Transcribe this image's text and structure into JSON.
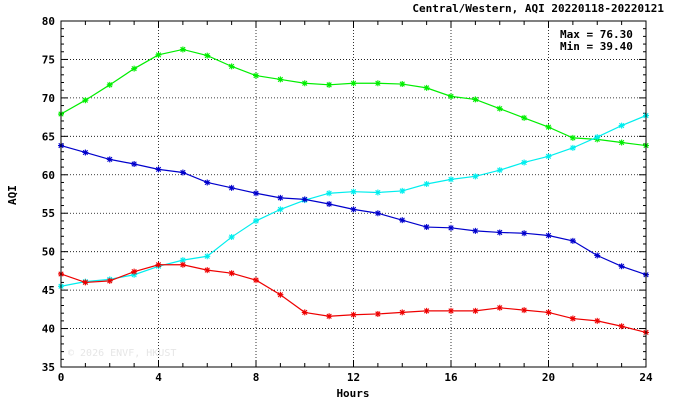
{
  "chart_data": {
    "type": "line",
    "title": "Central/Western, AQI 20220118-20220121",
    "xlabel": "Hours",
    "ylabel": "AQI",
    "xlim": [
      0,
      24
    ],
    "ylim": [
      35,
      80
    ],
    "x_ticks": [
      0,
      4,
      8,
      12,
      16,
      20,
      24
    ],
    "y_ticks": [
      35,
      40,
      45,
      50,
      55,
      60,
      65,
      70,
      75,
      80
    ],
    "grid": true,
    "legend": "none",
    "stats": {
      "max": "Max = 76.30",
      "min": "Min = 39.40"
    },
    "watermark": "© 2026 ENVF, HKUST",
    "x": [
      0,
      1,
      2,
      3,
      4,
      5,
      6,
      7,
      8,
      9,
      10,
      11,
      12,
      13,
      14,
      15,
      16,
      17,
      18,
      19,
      20,
      21,
      22,
      23,
      24
    ],
    "series": [
      {
        "color": "#00ee00",
        "values": [
          67.9,
          69.7,
          71.7,
          73.8,
          75.6,
          76.3,
          75.5,
          74.1,
          72.9,
          72.4,
          71.9,
          71.7,
          71.9,
          71.9,
          71.8,
          71.3,
          70.2,
          69.8,
          68.6,
          67.4,
          66.2,
          64.8,
          64.6,
          64.2,
          63.8
        ]
      },
      {
        "color": "#00eeee",
        "values": [
          45.5,
          46.1,
          46.4,
          47.0,
          48.1,
          48.9,
          49.4,
          51.9,
          54.0,
          55.5,
          56.7,
          57.6,
          57.8,
          57.7,
          57.9,
          58.8,
          59.4,
          59.8,
          60.6,
          61.6,
          62.4,
          63.5,
          64.9,
          66.4,
          67.7
        ]
      },
      {
        "color": "#0000cc",
        "values": [
          63.8,
          62.9,
          62.0,
          61.4,
          60.7,
          60.3,
          59.0,
          58.3,
          57.6,
          57.0,
          56.8,
          56.2,
          55.5,
          55.0,
          54.1,
          53.2,
          53.1,
          52.7,
          52.5,
          52.4,
          52.1,
          51.4,
          49.5,
          48.1,
          47.0
        ]
      },
      {
        "color": "#ee0000",
        "values": [
          47.1,
          46.0,
          46.2,
          47.4,
          48.3,
          48.3,
          47.6,
          47.2,
          46.3,
          44.4,
          42.1,
          41.6,
          41.8,
          41.9,
          42.1,
          42.3,
          42.3,
          42.3,
          42.7,
          42.4,
          42.1,
          41.3,
          41.0,
          40.3,
          39.5
        ]
      }
    ]
  }
}
